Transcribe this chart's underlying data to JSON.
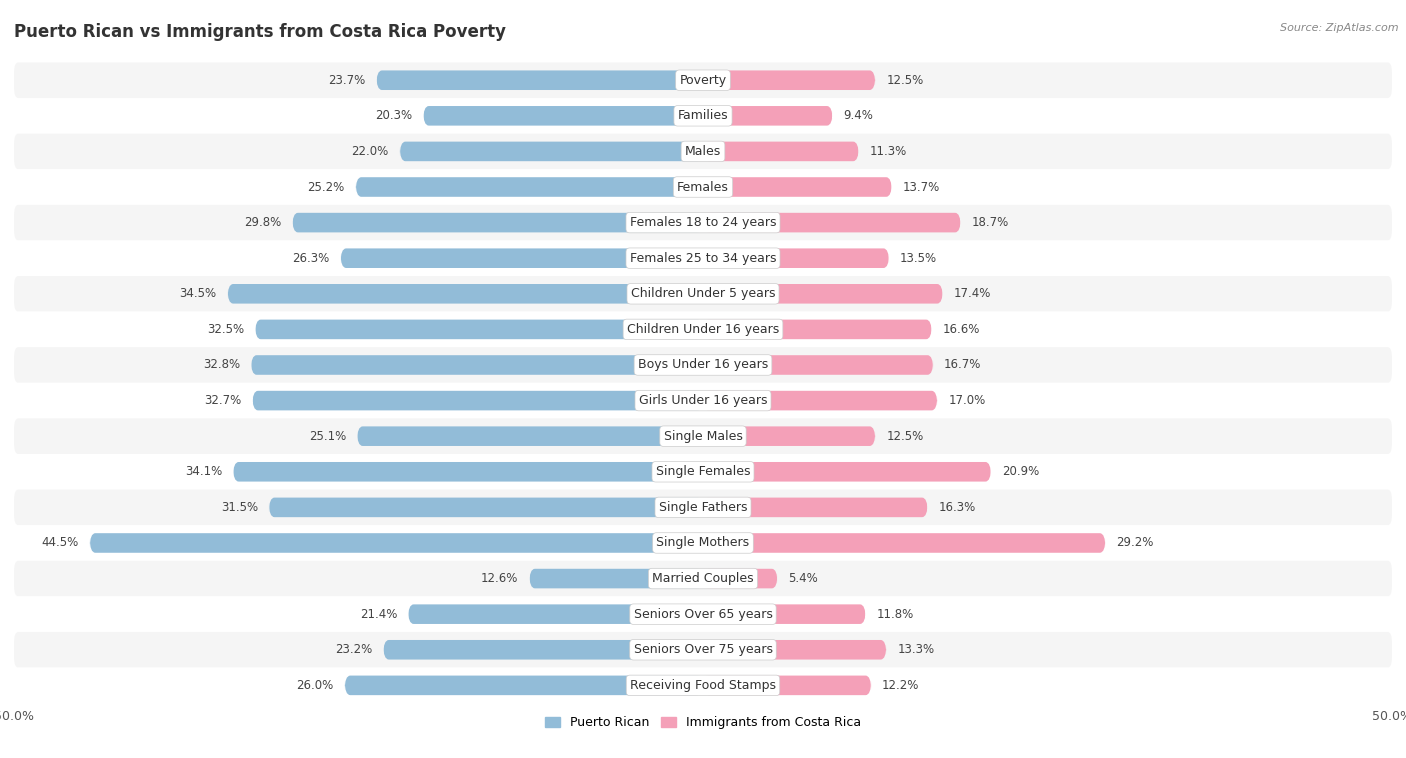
{
  "title": "Puerto Rican vs Immigrants from Costa Rica Poverty",
  "source": "Source: ZipAtlas.com",
  "categories": [
    "Poverty",
    "Families",
    "Males",
    "Females",
    "Females 18 to 24 years",
    "Females 25 to 34 years",
    "Children Under 5 years",
    "Children Under 16 years",
    "Boys Under 16 years",
    "Girls Under 16 years",
    "Single Males",
    "Single Females",
    "Single Fathers",
    "Single Mothers",
    "Married Couples",
    "Seniors Over 65 years",
    "Seniors Over 75 years",
    "Receiving Food Stamps"
  ],
  "left_values": [
    23.7,
    20.3,
    22.0,
    25.2,
    29.8,
    26.3,
    34.5,
    32.5,
    32.8,
    32.7,
    25.1,
    34.1,
    31.5,
    44.5,
    12.6,
    21.4,
    23.2,
    26.0
  ],
  "right_values": [
    12.5,
    9.4,
    11.3,
    13.7,
    18.7,
    13.5,
    17.4,
    16.6,
    16.7,
    17.0,
    12.5,
    20.9,
    16.3,
    29.2,
    5.4,
    11.8,
    13.3,
    12.2
  ],
  "left_color": "#92bcd8",
  "right_color": "#f4a0b8",
  "row_bg_even": "#f5f5f5",
  "row_bg_odd": "#ffffff",
  "fig_bg": "#ffffff",
  "axis_limit": 50.0,
  "legend_left": "Puerto Rican",
  "legend_right": "Immigrants from Costa Rica",
  "title_fontsize": 12,
  "source_fontsize": 8,
  "label_fontsize": 9,
  "value_fontsize": 8.5,
  "bar_height": 0.55
}
